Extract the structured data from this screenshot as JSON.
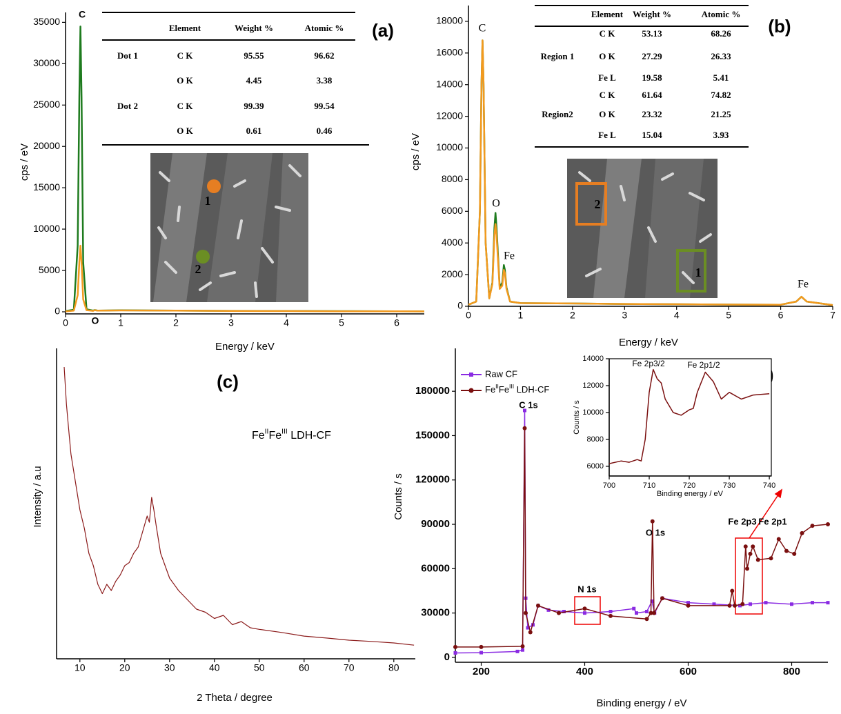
{
  "chart_data": [
    {
      "type": "line",
      "title": "(a)",
      "x_label": "Energy / keV",
      "y_label": "cps / eV",
      "xlim": [
        0,
        6.5
      ],
      "xticks": [
        0,
        1,
        2,
        3,
        4,
        5,
        6
      ],
      "ylim": [
        -250,
        36200
      ],
      "yticks": [
        0,
        5000,
        10000,
        15000,
        20000,
        25000,
        30000,
        35000
      ],
      "series": [
        {
          "color": "#1e7b1e",
          "x": [
            0,
            0.15,
            0.22,
            0.25,
            0.27,
            0.29,
            0.32,
            0.38,
            0.5,
            0.53,
            0.58,
            1,
            2,
            3,
            4,
            5,
            6,
            6.5
          ],
          "values": [
            100,
            250,
            8000,
            26000,
            34500,
            26000,
            6000,
            300,
            150,
            220,
            150,
            180,
            150,
            120,
            100,
            80,
            60,
            50
          ]
        },
        {
          "color": "#f39a1e",
          "x": [
            0,
            0.15,
            0.22,
            0.25,
            0.27,
            0.29,
            0.32,
            0.38,
            0.5,
            0.53,
            0.58,
            1,
            2,
            3,
            4,
            5,
            6,
            6.5
          ],
          "values": [
            50,
            150,
            2000,
            6000,
            8000,
            6000,
            1500,
            200,
            120,
            200,
            140,
            170,
            140,
            110,
            90,
            70,
            60,
            50
          ]
        }
      ],
      "annotations": [
        "C",
        "O"
      ],
      "table": {
        "header": [
          null,
          "Element",
          "Weight %",
          "Atomic %"
        ],
        "rows": [
          [
            "Dot 1",
            "C K",
            "95.55",
            "96.62"
          ],
          [
            null,
            "O K",
            "4.45",
            "3.38"
          ],
          [
            "Dot 2",
            "C K",
            "99.39",
            "99.54"
          ],
          [
            null,
            "O K",
            "0.61",
            "0.46"
          ]
        ]
      },
      "inset_labels": [
        "1",
        "2"
      ]
    },
    {
      "type": "line",
      "title": "(b)",
      "x_label": "Energy / keV",
      "y_label": "cps / eV",
      "xlim": [
        0,
        7
      ],
      "xticks": [
        0,
        1,
        2,
        3,
        4,
        5,
        6,
        7
      ],
      "ylim": [
        0,
        19000
      ],
      "yticks": [
        0,
        2000,
        4000,
        6000,
        8000,
        10000,
        12000,
        14000,
        16000,
        18000
      ],
      "series": [
        {
          "color": "#1e7b1e",
          "x": [
            0,
            0.15,
            0.22,
            0.25,
            0.27,
            0.29,
            0.33,
            0.4,
            0.46,
            0.5,
            0.52,
            0.54,
            0.6,
            0.65,
            0.68,
            0.7,
            0.73,
            0.8,
            1,
            2,
            3,
            4,
            5,
            6,
            6.3,
            6.4,
            6.5,
            7
          ],
          "values": [
            100,
            300,
            6000,
            14000,
            16800,
            14000,
            4000,
            500,
            1500,
            5000,
            5900,
            5000,
            1200,
            1500,
            2600,
            2300,
            1200,
            300,
            200,
            180,
            150,
            130,
            110,
            100,
            300,
            600,
            300,
            80
          ]
        },
        {
          "color": "#f39a1e",
          "x": [
            0,
            0.15,
            0.22,
            0.25,
            0.27,
            0.29,
            0.33,
            0.4,
            0.46,
            0.5,
            0.52,
            0.54,
            0.6,
            0.65,
            0.68,
            0.7,
            0.73,
            0.8,
            1,
            2,
            3,
            4,
            5,
            6,
            6.3,
            6.4,
            6.5,
            7
          ],
          "values": [
            100,
            300,
            6000,
            14000,
            16800,
            14000,
            4000,
            500,
            1400,
            4500,
            5200,
            4500,
            1100,
            1300,
            2300,
            2100,
            1100,
            300,
            200,
            180,
            150,
            130,
            110,
            100,
            300,
            600,
            300,
            80
          ]
        }
      ],
      "annotations": [
        "C",
        "O",
        "Fe",
        "Fe"
      ],
      "table": {
        "header": [
          null,
          "Element",
          "Weight %",
          "Atomic %"
        ],
        "rows": [
          [
            null,
            "C K",
            "53.13",
            "68.26"
          ],
          [
            "Region 1",
            "O K",
            "27.29",
            "26.33"
          ],
          [
            null,
            "Fe L",
            "19.58",
            "5.41"
          ],
          [
            null,
            "C K",
            "61.64",
            "74.82"
          ],
          [
            "Region2",
            "O K",
            "23.32",
            "21.25"
          ],
          [
            null,
            "Fe L",
            "15.04",
            "3.93"
          ]
        ]
      },
      "inset_labels": [
        "2",
        "1"
      ]
    },
    {
      "type": "line",
      "title": "(c)",
      "x_label": "2 Theta / degree",
      "y_label": "Intensity / a.u",
      "xlim": [
        4.8,
        84.8
      ],
      "xticks": [
        10,
        20,
        30,
        40,
        50,
        60,
        70,
        80
      ],
      "ylim": [
        0,
        100
      ],
      "series": [
        {
          "color": "#8b1a1a",
          "x": [
            6.5,
            7,
            7.5,
            8,
            9,
            10,
            11,
            12,
            13,
            14,
            15,
            16,
            17,
            18,
            19,
            20,
            21,
            22,
            23,
            24,
            25,
            25.5,
            26,
            26.5,
            27,
            28,
            29,
            30,
            32,
            34,
            36,
            38,
            40,
            42,
            44,
            46,
            48,
            50,
            55,
            60,
            65,
            70,
            75,
            80,
            84.5
          ],
          "values": [
            94,
            82,
            74,
            66,
            57,
            48,
            42,
            34,
            30,
            24,
            21,
            24,
            22,
            25,
            27,
            30,
            31,
            34,
            36,
            41,
            46,
            44,
            52,
            48,
            43,
            34,
            30,
            26,
            22,
            19,
            16,
            15,
            13,
            14,
            11,
            12,
            10,
            9.5,
            8.5,
            7.3,
            6.7,
            6,
            5.6,
            5.1,
            4.4
          ]
        }
      ],
      "annotations": [
        [
          {
            "text": "Fe"
          },
          {
            "text": "II",
            "sup": true
          },
          {
            "text": "Fe"
          },
          {
            "text": "III",
            "sup": true
          },
          {
            "text": " LDH-CF"
          }
        ]
      ]
    },
    {
      "type": "line",
      "title": "(d)",
      "x_label": "Binding energy / eV",
      "y_label": "Counts / s",
      "xlim": [
        150,
        870
      ],
      "xticks": [
        200,
        400,
        600,
        800
      ],
      "ylim": [
        -3300,
        209000
      ],
      "yticks": [
        0,
        30000,
        60000,
        90000,
        120000,
        150000,
        180000
      ],
      "series": [
        {
          "name": "Raw CF",
          "color": "#8a2be2",
          "marker": "square",
          "x": [
            150,
            200,
            270,
            280,
            284,
            286,
            290,
            300,
            310,
            330,
            360,
            400,
            450,
            495,
            500,
            520,
            530,
            535,
            550,
            600,
            650,
            700,
            720,
            750,
            800,
            840,
            870
          ],
          "values": [
            3000,
            3200,
            4000,
            5000,
            167000,
            40000,
            20000,
            22000,
            35000,
            32000,
            31000,
            30000,
            31000,
            33000,
            30000,
            31000,
            38000,
            30000,
            40000,
            37000,
            36000,
            35000,
            36000,
            37000,
            36000,
            37000,
            37000
          ]
        },
        {
          "name": [
            {
              "text": "Fe"
            },
            {
              "text": "II",
              "sup": true
            },
            {
              "text": "Fe"
            },
            {
              "text": "III",
              "sup": true
            },
            {
              "text": " LDH-CF"
            }
          ],
          "color": "#7a0f0f",
          "marker": "circle",
          "x": [
            150,
            200,
            280,
            284,
            286,
            295,
            310,
            350,
            400,
            450,
            520,
            528,
            531,
            534,
            550,
            600,
            680,
            685,
            690,
            705,
            711,
            714,
            720,
            725,
            735,
            760,
            775,
            790,
            805,
            820,
            840,
            870
          ],
          "values": [
            7000,
            7000,
            7500,
            155000,
            30000,
            17000,
            35000,
            30000,
            33000,
            28000,
            26000,
            30000,
            92000,
            30000,
            40000,
            35000,
            35000,
            45000,
            35000,
            36000,
            75000,
            60000,
            70000,
            75000,
            66000,
            67000,
            80000,
            72000,
            70000,
            84000,
            89000,
            90000
          ]
        }
      ],
      "annotations": [
        "C 1s",
        "N 1s",
        "O 1s",
        "Fe 2p3",
        "Fe 2p1"
      ]
    },
    {
      "type": "line",
      "x_label": "Binding energy / eV",
      "y_label": "Counts / s",
      "xlim": [
        700,
        740.5
      ],
      "xticks": [
        700,
        710,
        720,
        730,
        740
      ],
      "ylim": [
        5280,
        14000
      ],
      "yticks": [
        6000,
        8000,
        10000,
        12000,
        14000
      ],
      "series": [
        {
          "color": "#7a0f0f",
          "x": [
            700,
            703,
            705,
            707,
            708,
            709,
            710,
            711,
            712,
            713,
            714,
            716,
            718,
            720,
            721,
            722,
            724,
            726,
            728,
            730,
            733,
            736,
            740
          ],
          "values": [
            6200,
            6400,
            6300,
            6500,
            6400,
            8000,
            11500,
            13200,
            12500,
            12200,
            11000,
            10000,
            9800,
            10200,
            10300,
            11500,
            13000,
            12300,
            11000,
            11500,
            11000,
            11300,
            11400
          ]
        }
      ],
      "annotations": [
        "Fe 2p3/2",
        "Fe 2p1/2"
      ]
    }
  ]
}
